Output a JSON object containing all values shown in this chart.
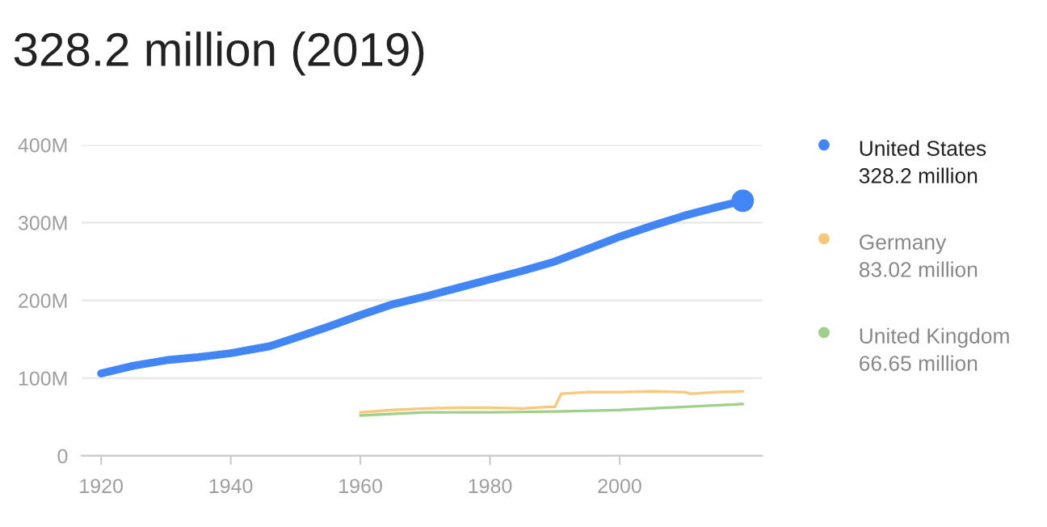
{
  "chart_data": {
    "type": "line",
    "title": "328.2 million (2019)",
    "series": [
      {
        "name": "United States",
        "color": "#4285f4",
        "x": [
          1920,
          1925,
          1930,
          1935,
          1940,
          1946,
          1950,
          1955,
          1960,
          1965,
          1970,
          1975,
          1980,
          1985,
          1990,
          1995,
          2000,
          2005,
          2010,
          2015,
          2019
        ],
        "values": [
          106,
          116,
          123,
          127,
          132,
          141,
          152,
          166,
          181,
          195,
          205,
          216,
          227,
          238,
          250,
          266,
          282,
          296,
          309,
          320,
          328.2
        ]
      },
      {
        "name": "Germany",
        "color": "#fbc77a",
        "x": [
          1960,
          1965,
          1970,
          1975,
          1980,
          1985,
          1989,
          1990,
          1991,
          1995,
          2000,
          2005,
          2010,
          2011,
          2015,
          2019
        ],
        "values": [
          56,
          59,
          61,
          62,
          62,
          61,
          63,
          63,
          80,
          82,
          82,
          83,
          82,
          80,
          82,
          83.02
        ]
      },
      {
        "name": "United Kingdom",
        "color": "#9fd08a",
        "x": [
          1960,
          1970,
          1980,
          1990,
          2000,
          2010,
          2019
        ],
        "values": [
          52,
          56,
          56,
          57,
          59,
          63,
          66.65
        ]
      }
    ],
    "annotations": [
      "328.2 million",
      "83.02 million",
      "66.65 million"
    ],
    "xlim": [
      1917,
      2022
    ],
    "xticks": [
      1920,
      1940,
      1960,
      1980,
      2000
    ],
    "ylim": [
      0,
      400
    ],
    "yticks": [
      {
        "value": 0,
        "label": "0"
      },
      {
        "value": 100,
        "label": "100M"
      },
      {
        "value": 200,
        "label": "200M"
      },
      {
        "value": 300,
        "label": "300M"
      },
      {
        "value": 400,
        "label": "400M"
      }
    ],
    "grid": "y",
    "legend": "right"
  }
}
